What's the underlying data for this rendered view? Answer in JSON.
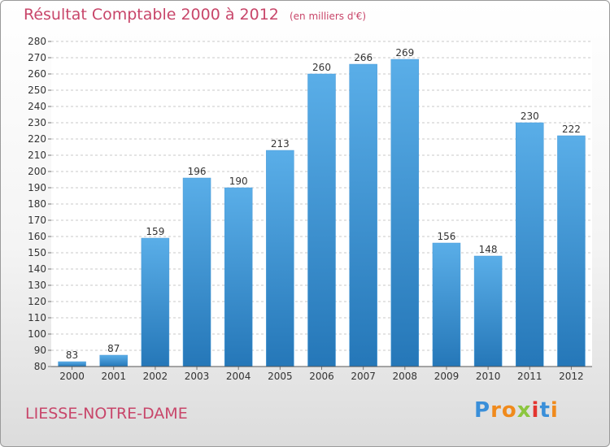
{
  "header": {
    "title": "Résultat Comptable 2000 à 2012",
    "subtitle": "(en milliers d'€)"
  },
  "footer": {
    "commune": "LIESSE-NOTRE-DAME",
    "logo": {
      "letters": [
        "P",
        "r",
        "o",
        "x",
        "i",
        "t",
        "i"
      ],
      "colors": [
        "#3a8fd9",
        "#f08a1c",
        "#f08a1c",
        "#8cc63f",
        "#e3342f",
        "#3a8fd9",
        "#f08a1c"
      ]
    }
  },
  "colors": {
    "bar_light": "#5aaee8",
    "bar_dark": "#2577b8",
    "title": "#c8466a"
  },
  "chart_data": {
    "type": "bar",
    "title": "Résultat Comptable 2000 à 2012",
    "unit": "(en milliers d'€)",
    "categories": [
      "2000",
      "2001",
      "2002",
      "2003",
      "2004",
      "2005",
      "2006",
      "2007",
      "2008",
      "2009",
      "2010",
      "2011",
      "2012"
    ],
    "values": [
      83,
      87,
      159,
      196,
      190,
      213,
      260,
      266,
      269,
      156,
      148,
      230,
      222
    ],
    "ylim": [
      80,
      280
    ],
    "yticks": [
      80,
      90,
      100,
      110,
      120,
      130,
      140,
      150,
      160,
      170,
      180,
      190,
      200,
      210,
      220,
      230,
      240,
      250,
      260,
      270,
      280
    ],
    "grid": true
  }
}
